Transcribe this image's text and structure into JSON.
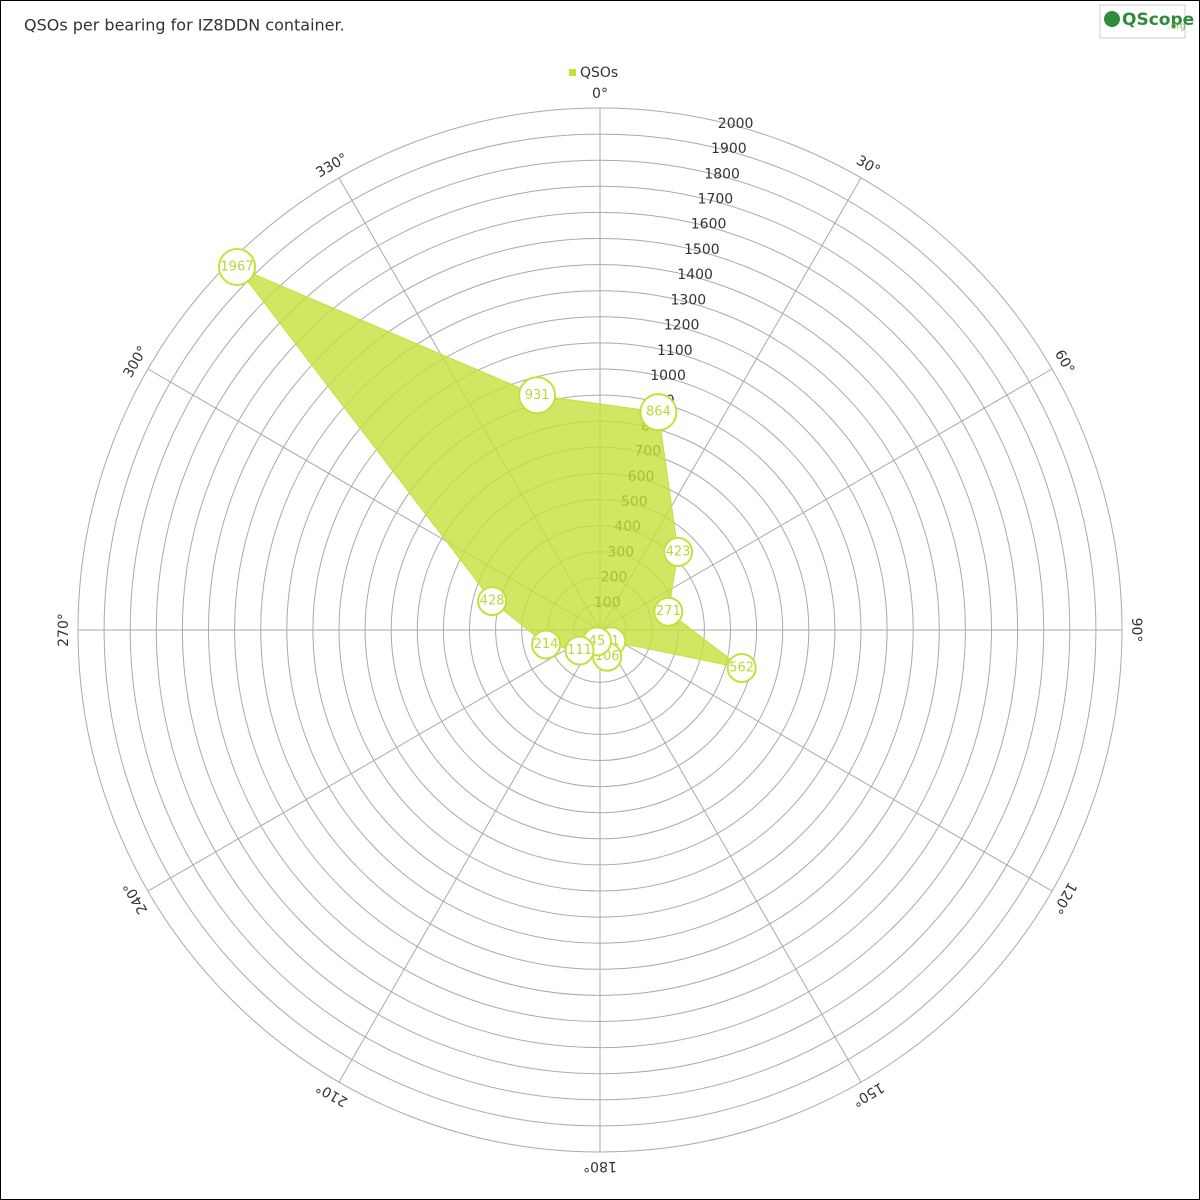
{
  "chart_data": {
    "type": "polar",
    "title": "QSOs per bearing for IZ8DDN container.",
    "logo": "QScope",
    "logo_suffix": ".org",
    "series": [
      {
        "name": "QSOs",
        "color": "#c5e03c",
        "values": [
          864,
          423,
          271,
          562,
          61,
          106,
          45,
          111,
          214,
          428,
          1967,
          931
        ]
      }
    ],
    "x": [
      15,
      45,
      75,
      105,
      135,
      165,
      195,
      225,
      255,
      285,
      315,
      345
    ],
    "xlim": [
      0,
      360
    ],
    "xticks": [
      {
        "value": 0,
        "label": "0°"
      },
      {
        "value": 30,
        "label": "30°"
      },
      {
        "value": 60,
        "label": "60°"
      },
      {
        "value": 90,
        "label": "90°"
      },
      {
        "value": 120,
        "label": "120°"
      },
      {
        "value": 150,
        "label": "150°"
      },
      {
        "value": 180,
        "label": "180°"
      },
      {
        "value": 210,
        "label": "210°"
      },
      {
        "value": 240,
        "label": "240°"
      },
      {
        "value": 270,
        "label": "270°"
      },
      {
        "value": 300,
        "label": "300°"
      },
      {
        "value": 330,
        "label": "330°"
      }
    ],
    "ylim": [
      0,
      2000
    ],
    "yticks": [
      100,
      200,
      300,
      400,
      500,
      600,
      700,
      800,
      900,
      1000,
      1100,
      1200,
      1300,
      1400,
      1500,
      1600,
      1700,
      1800,
      1900,
      2000
    ],
    "grid": true
  }
}
